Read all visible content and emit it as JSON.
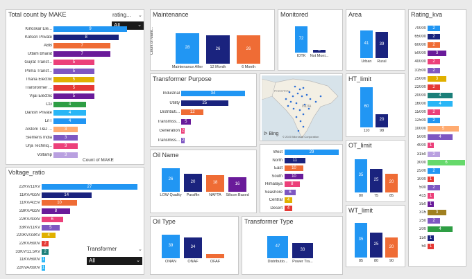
{
  "make_panel": {
    "title": "Total count by MAKE",
    "axis_title": "Count of MAKE",
    "slicer_label": "rating...",
    "slicer_value": "All"
  },
  "voltage_panel": {
    "title": "Voltage_ratio",
    "slicer_label": "Transformer",
    "slicer_value": "All"
  },
  "maintenance_panel": {
    "title": "Maintenance",
    "ylabel": "Count of Maint..."
  },
  "monitored_panel": {
    "title": "Monitored"
  },
  "area_panel": {
    "title": "Area"
  },
  "rating_panel": {
    "title": "Rating_kva"
  },
  "purpose_panel": {
    "title": "Transformer Purpose"
  },
  "map_panel": {
    "bing": "Bing",
    "copyright": "© 2020 Microsoft Corporation",
    "pakistan": "PAKISTAN",
    "india": "INDIA"
  },
  "ht_panel": {
    "title": "HT_limit"
  },
  "oil_name_panel": {
    "title": "Oil Name"
  },
  "region_panel": {},
  "ot_panel": {
    "title": "OT_limit"
  },
  "oil_type_panel": {
    "title": "Oil Type"
  },
  "ttype_panel": {
    "title": "Transformer Type"
  },
  "wt_panel": {
    "title": "WT_limit"
  },
  "colors": {
    "blue": "#2196f3",
    "navy": "#1a237e",
    "orange": "#ef6c35",
    "purple": "#6a1b9a",
    "yellow": "#e0b000",
    "violet": "#7e57c2",
    "red": "#e53935",
    "green": "#2e9e44",
    "sky": "#29b6f6",
    "teal": "#1b7f79",
    "pink": "#ec407a",
    "peach": "#ffab70",
    "lime": "#66d96b",
    "olive": "#a08020",
    "lavender": "#b9a0e0",
    "brown": "#c0504d"
  },
  "chart_data": [
    {
      "id": "make",
      "type": "bar",
      "orientation": "horizontal",
      "title": "Total count by MAKE",
      "xlabel": "Count of MAKE",
      "categories": [
        "Kirloskar Ele...",
        "Kotson Private",
        "ABB",
        "Uttam Bharat",
        "Gujrat Transf...",
        "Prima Transf...",
        "Thana Electric",
        "Transformer ...",
        "Vijai Electric",
        "CG",
        "Danish Private",
        "LnT",
        "Alstom T&D ...",
        "Siemens India",
        "Urja Techniq...",
        "Voltamp"
      ],
      "values": [
        9,
        8,
        7,
        7,
        5,
        5,
        5,
        5,
        5,
        4,
        4,
        4,
        3,
        3,
        3,
        3
      ],
      "colors": [
        "blue",
        "navy",
        "orange",
        "purple",
        "pink",
        "violet",
        "yellow",
        "red",
        "purple",
        "green",
        "sky",
        "blue",
        "peach",
        "violet",
        "pink",
        "lavender"
      ],
      "xlim": [
        0,
        9
      ]
    },
    {
      "id": "voltage",
      "type": "bar",
      "orientation": "horizontal",
      "title": "Voltage_ratio",
      "categories": [
        "22KV/11KV",
        "11KV/433V",
        "11KV/415V",
        "33KV/433V",
        "22KV/433V",
        "33KV/11KV",
        "220KV/33KV",
        "22KV/690V",
        "33KV/11.5KV",
        "11KV/690V",
        "22KVA/690V"
      ],
      "values": [
        27,
        14,
        10,
        8,
        6,
        5,
        4,
        2,
        2,
        1,
        1
      ],
      "colors": [
        "blue",
        "navy",
        "orange",
        "purple",
        "pink",
        "violet",
        "yellow",
        "red",
        "teal",
        "sky",
        "sky"
      ],
      "xlim": [
        0,
        27
      ]
    },
    {
      "id": "maintenance",
      "type": "bar",
      "title": "Maintenance",
      "ylabel": "Count of Maint...",
      "categories": [
        "Maintenance After Breakd...",
        "12 Month",
        "6 Month"
      ],
      "values": [
        28,
        26,
        26
      ],
      "colors": [
        "blue",
        "navy",
        "orange"
      ],
      "ylim": [
        0,
        28
      ]
    },
    {
      "id": "monitored",
      "type": "bar",
      "title": "Monitored",
      "categories": [
        "IOTK",
        "Not Moni..."
      ],
      "values": [
        72,
        8
      ],
      "colors": [
        "blue",
        "navy"
      ],
      "ylim": [
        0,
        72
      ]
    },
    {
      "id": "area",
      "type": "bar",
      "title": "Area",
      "categories": [
        "Urban",
        "Rural"
      ],
      "values": [
        41,
        39
      ],
      "colors": [
        "blue",
        "navy"
      ],
      "ylim": [
        0,
        41
      ]
    },
    {
      "id": "rating",
      "type": "bar",
      "orientation": "horizontal",
      "title": "Rating_kva",
      "categories": [
        "70000",
        "65000",
        "60000",
        "50000",
        "40000",
        "31500",
        "25000",
        "22000",
        "20000",
        "16000",
        "15000",
        "12500",
        "10000",
        "5000",
        "4000",
        "3150",
        "3000",
        "2500",
        "1000",
        "500",
        "415",
        "350",
        "315",
        "250",
        "200",
        "150",
        "50"
      ],
      "values": [
        2,
        2,
        2,
        3,
        2,
        2,
        3,
        2,
        4,
        4,
        2,
        2,
        5,
        4,
        1,
        2,
        6,
        2,
        1,
        2,
        1,
        1,
        3,
        2,
        4,
        1,
        1
      ],
      "colors": [
        "blue",
        "navy",
        "orange",
        "purple",
        "pink",
        "violet",
        "yellow",
        "red",
        "teal",
        "sky",
        "pink",
        "blue",
        "peach",
        "violet",
        "pink",
        "lavender",
        "lime",
        "blue",
        "red",
        "violet",
        "pink",
        "purple",
        "olive",
        "violet",
        "green",
        "navy",
        "red"
      ],
      "xlim": [
        0,
        6
      ]
    },
    {
      "id": "purpose",
      "type": "bar",
      "orientation": "horizontal",
      "title": "Transformer Purpose",
      "categories": [
        "Industrial",
        "Utility",
        "Distributi...",
        "Transmiss...",
        "Generation",
        "Transmiss..."
      ],
      "values": [
        34,
        25,
        12,
        5,
        2,
        2
      ],
      "colors": [
        "blue",
        "navy",
        "orange",
        "purple",
        "pink",
        "violet"
      ],
      "xlim": [
        0,
        34
      ]
    },
    {
      "id": "ht",
      "type": "bar",
      "title": "HT_limit",
      "categories": [
        "110",
        "98"
      ],
      "values": [
        60,
        20
      ],
      "colors": [
        "blue",
        "navy"
      ],
      "ylim": [
        0,
        60
      ]
    },
    {
      "id": "oilname",
      "type": "bar",
      "title": "Oil Name",
      "categories": [
        "LOW Quality",
        "Paraffin",
        "NAFTA",
        "Silicon Based"
      ],
      "values": [
        26,
        20,
        18,
        16
      ],
      "colors": [
        "blue",
        "navy",
        "orange",
        "purple"
      ],
      "ylim": [
        0,
        26
      ]
    },
    {
      "id": "region",
      "type": "bar",
      "orientation": "horizontal",
      "categories": [
        "West",
        "North",
        "East",
        "South",
        "Himalaya",
        "Seashore",
        "Central",
        "Desert"
      ],
      "values": [
        29,
        11,
        10,
        10,
        8,
        6,
        4,
        4
      ],
      "colors": [
        "blue",
        "navy",
        "orange",
        "purple",
        "pink",
        "violet",
        "yellow",
        "red"
      ],
      "xlim": [
        0,
        29
      ]
    },
    {
      "id": "ot",
      "type": "bar",
      "title": "OT_limit",
      "categories": [
        "80",
        "75",
        "85"
      ],
      "values": [
        35,
        25,
        20
      ],
      "colors": [
        "blue",
        "navy",
        "orange"
      ],
      "ylim": [
        0,
        35
      ]
    },
    {
      "id": "oiltype",
      "type": "bar",
      "title": "Oil Type",
      "categories": [
        "ONAN",
        "ONAF",
        "OFAF"
      ],
      "values": [
        39,
        34,
        7
      ],
      "value_labels": [
        "39",
        "34",
        ""
      ],
      "colors": [
        "blue",
        "navy",
        "orange"
      ],
      "ylim": [
        0,
        39
      ]
    },
    {
      "id": "ttype",
      "type": "bar",
      "title": "Transformer Type",
      "categories": [
        "Distributio...",
        "Power Tra..."
      ],
      "values": [
        47,
        33
      ],
      "colors": [
        "blue",
        "navy"
      ],
      "ylim": [
        0,
        47
      ]
    },
    {
      "id": "wt",
      "type": "bar",
      "title": "WT_limit",
      "categories": [
        "85",
        "80",
        "90"
      ],
      "values": [
        35,
        25,
        20
      ],
      "colors": [
        "blue",
        "navy",
        "orange"
      ],
      "ylim": [
        0,
        35
      ]
    }
  ]
}
